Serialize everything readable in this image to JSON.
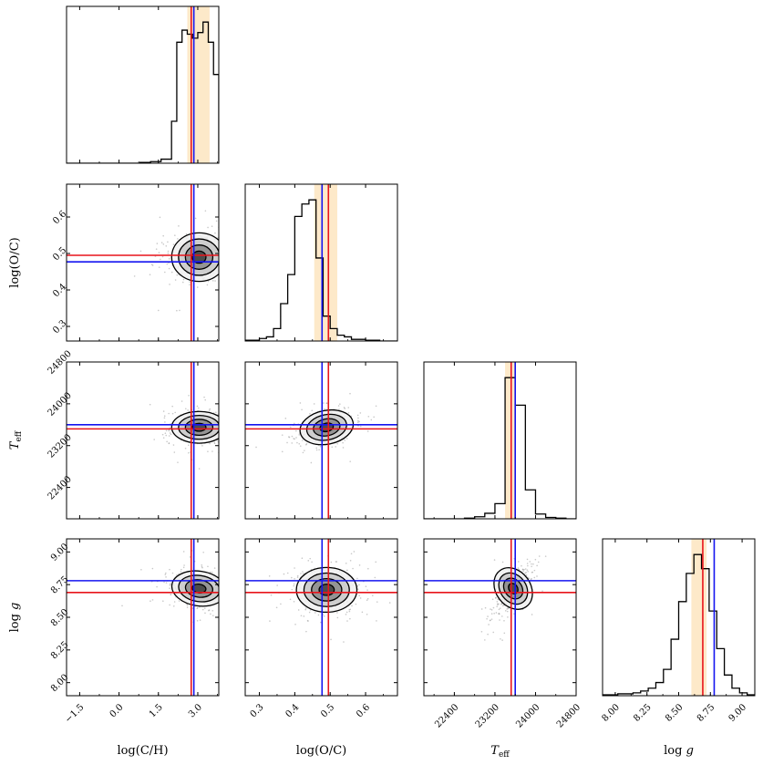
{
  "chart_data": {
    "type": "corner",
    "parameters": [
      {
        "key": "logCH",
        "label": "log(C/H)",
        "sub": "",
        "range": [
          -2.0,
          3.8
        ],
        "ticks": [
          -1.5,
          0.0,
          1.5,
          3.0
        ],
        "tick_labels": [
          "−1.5",
          "0.0",
          "1.5",
          "3.0"
        ]
      },
      {
        "key": "logOC",
        "label": "log(O/C)",
        "sub": "",
        "range": [
          0.26,
          0.69
        ],
        "ticks": [
          0.3,
          0.4,
          0.5,
          0.6
        ],
        "tick_labels": [
          "0.3",
          "0.4",
          "0.5",
          "0.6"
        ]
      },
      {
        "key": "Teff",
        "label": "T",
        "sub": "eff",
        "range": [
          21800,
          24800
        ],
        "ticks": [
          22400,
          23200,
          24000,
          24800
        ],
        "tick_labels": [
          "22400",
          "23200",
          "24000",
          "24800"
        ]
      },
      {
        "key": "logg",
        "label": "log g",
        "sub": "",
        "range": [
          7.9,
          9.1
        ],
        "ticks": [
          8.0,
          8.25,
          8.5,
          8.75,
          9.0
        ],
        "tick_labels": [
          "8.00",
          "8.25",
          "8.50",
          "8.75",
          "9.00"
        ]
      }
    ],
    "values_red": [
      2.75,
      0.495,
      23520,
      8.69
    ],
    "values_blue": [
      2.85,
      0.477,
      23600,
      8.78
    ],
    "credible_bands": [
      [
        2.6,
        3.45
      ],
      [
        0.455,
        0.52
      ],
      [
        23400,
        23600
      ],
      [
        8.6,
        8.72
      ]
    ],
    "histograms": [
      {
        "bin_edges": [
          -2.0,
          -1.6,
          -1.2,
          -0.8,
          -0.4,
          0.0,
          0.4,
          0.8,
          1.2,
          1.6,
          2.0,
          2.2,
          2.4,
          2.6,
          2.8,
          3.0,
          3.2,
          3.4,
          3.6,
          3.8
        ],
        "counts": [
          0,
          0,
          0,
          0,
          0,
          0,
          0,
          1,
          2,
          5,
          52,
          150,
          165,
          160,
          155,
          162,
          175,
          150,
          110
        ]
      },
      {
        "bin_edges": [
          0.26,
          0.28,
          0.3,
          0.32,
          0.34,
          0.36,
          0.38,
          0.4,
          0.42,
          0.44,
          0.46,
          0.48,
          0.5,
          0.52,
          0.54,
          0.56,
          0.58,
          0.6,
          0.62,
          0.64,
          0.66,
          0.69
        ],
        "counts": [
          1,
          1,
          3,
          5,
          15,
          45,
          80,
          150,
          165,
          170,
          100,
          30,
          15,
          7,
          5,
          2,
          2,
          1,
          1,
          0,
          0
        ]
      },
      {
        "bin_edges": [
          21800,
          22000,
          22200,
          22400,
          22600,
          22800,
          23000,
          23200,
          23400,
          23600,
          23800,
          24000,
          24200,
          24400,
          24600,
          24800
        ],
        "counts": [
          0,
          0,
          0,
          0,
          1,
          3,
          8,
          22,
          205,
          165,
          42,
          7,
          2,
          1,
          0
        ]
      },
      {
        "bin_edges": [
          7.9,
          7.96,
          8.02,
          8.08,
          8.14,
          8.2,
          8.26,
          8.32,
          8.38,
          8.44,
          8.5,
          8.56,
          8.62,
          8.68,
          8.74,
          8.8,
          8.86,
          8.92,
          8.98,
          9.04,
          9.1
        ],
        "counts": [
          1,
          1,
          2,
          2,
          3,
          5,
          8,
          14,
          28,
          60,
          100,
          130,
          150,
          135,
          90,
          50,
          22,
          8,
          3,
          1
        ]
      }
    ],
    "scatter_2d": [
      {
        "row": 1,
        "col": 0,
        "center": [
          3.05,
          0.49
        ],
        "sigma": [
          0.55,
          0.035
        ],
        "rho": 0.0
      },
      {
        "row": 2,
        "col": 0,
        "center": [
          3.05,
          23550
        ],
        "sigma": [
          0.55,
          160
        ],
        "rho": 0.0
      },
      {
        "row": 2,
        "col": 1,
        "center": [
          0.49,
          23550
        ],
        "sigma": [
          0.04,
          170
        ],
        "rho": 0.35
      },
      {
        "row": 3,
        "col": 0,
        "center": [
          3.05,
          8.72
        ],
        "sigma": [
          0.55,
          0.07
        ],
        "rho": -0.25
      },
      {
        "row": 3,
        "col": 1,
        "center": [
          0.49,
          8.71
        ],
        "sigma": [
          0.045,
          0.09
        ],
        "rho": 0.0
      },
      {
        "row": 3,
        "col": 2,
        "center": [
          23560,
          8.72
        ],
        "sigma": [
          180,
          0.09
        ],
        "rho": 0.65
      }
    ],
    "colors": {
      "red": "#e8141b",
      "blue": "#1414f0",
      "band": "#fde9c9",
      "contour": "#000000",
      "points": "#9a9a9a"
    }
  }
}
